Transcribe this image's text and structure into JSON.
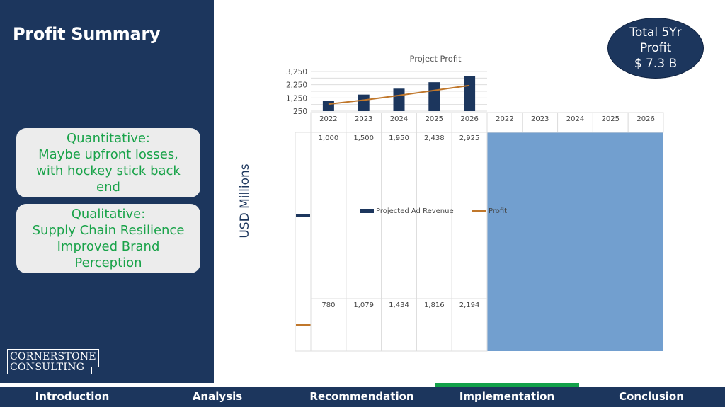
{
  "page": {
    "title": "Profit Summary"
  },
  "cards": {
    "quantitative": [
      "Quantitative:",
      "Maybe upfront losses,",
      "with hockey stick back",
      "end"
    ],
    "qualitative": [
      "Qualitative:",
      "Supply Chain Resilience",
      "Improved Brand",
      "Perception"
    ]
  },
  "logo": {
    "line1": "CORNERSTONE",
    "line2": "CONSULTING"
  },
  "total": {
    "line1": "Total 5Yr",
    "line2": "Profit",
    "line3": "$ 7.3 B"
  },
  "axis_side_label": "USD Millions",
  "colors": {
    "navy": "#1c365d",
    "green": "#1aa34a",
    "orange": "#c0772b",
    "light_blue": "#729fcf",
    "card_bg": "#ececec"
  },
  "chart_data": {
    "type": "bar",
    "title": "Project Profit",
    "categories": [
      "2022",
      "2023",
      "2024",
      "2025",
      "2026"
    ],
    "extra_categories": [
      "2022",
      "2023",
      "2024",
      "2025",
      "2026"
    ],
    "yticks": [
      "3,250",
      "2,250",
      "1,250",
      "250"
    ],
    "ylim": [
      250,
      3250
    ],
    "series": [
      {
        "name": "Projected Ad Revenue",
        "kind": "bar",
        "values": [
          1000,
          1500,
          1950,
          2438,
          2925
        ],
        "labels": [
          "1,000",
          "1,500",
          "1,950",
          "2,438",
          "2,925"
        ]
      },
      {
        "name": "Profit",
        "kind": "line",
        "values": [
          780,
          1079,
          1434,
          1816,
          2194
        ],
        "labels": [
          "780",
          "1,079",
          "1,434",
          "1,816",
          "2,194"
        ]
      }
    ]
  },
  "nav": {
    "items": [
      "Introduction",
      "Analysis",
      "Recommendation",
      "Implementation",
      "Conclusion"
    ],
    "active": 3
  }
}
